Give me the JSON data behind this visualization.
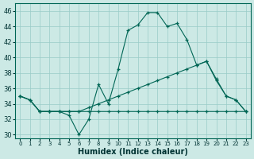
{
  "xlabel": "Humidex (Indice chaleur)",
  "background_color": "#cce9e5",
  "grid_color": "#99ccc8",
  "line_color": "#006655",
  "ylim": [
    29.5,
    47
  ],
  "xlim": [
    -0.5,
    23.5
  ],
  "line1_x": [
    0,
    1,
    2,
    3,
    4,
    5,
    6,
    7,
    8,
    9,
    10,
    11,
    12,
    13,
    14,
    15,
    16,
    17,
    18,
    19,
    20,
    21,
    22,
    23
  ],
  "line1_y": [
    35,
    34.5,
    33,
    33,
    33,
    32.5,
    30,
    32,
    36.5,
    34,
    38.5,
    43.5,
    44.2,
    45.8,
    45.8,
    44.0,
    44.4,
    42.3,
    39.0,
    39.5,
    37.0,
    35.0,
    34.5,
    33
  ],
  "line2_x": [
    0,
    1,
    2,
    3,
    4,
    5,
    6,
    7,
    8,
    9,
    10,
    11,
    12,
    13,
    14,
    15,
    16,
    17,
    18,
    19,
    20,
    21,
    22,
    23
  ],
  "line2_y": [
    35,
    34.5,
    33,
    33,
    33,
    33,
    33,
    33.5,
    34,
    34.5,
    35,
    35.5,
    36,
    36.5,
    37,
    37.5,
    38,
    38.5,
    39,
    39.5,
    37.2,
    35,
    34.5,
    33
  ],
  "line3_x": [
    0,
    1,
    2,
    3,
    4,
    5,
    6,
    7,
    8,
    9,
    10,
    11,
    12,
    13,
    14,
    15,
    16,
    17,
    18,
    19,
    20,
    21,
    22,
    23
  ],
  "line3_y": [
    35,
    34.5,
    33,
    33,
    33,
    33,
    33,
    33,
    33,
    33,
    33,
    33,
    33,
    33,
    33,
    33,
    33,
    33,
    33,
    33,
    33,
    33,
    33,
    33
  ]
}
